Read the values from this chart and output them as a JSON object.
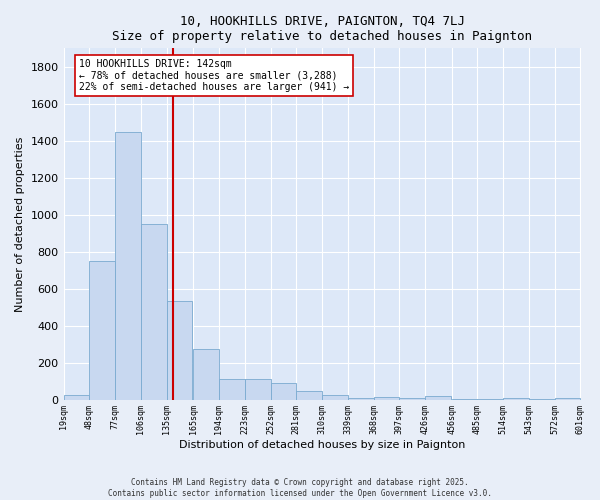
{
  "title_line1": "10, HOOKHILLS DRIVE, PAIGNTON, TQ4 7LJ",
  "title_line2": "Size of property relative to detached houses in Paignton",
  "xlabel": "Distribution of detached houses by size in Paignton",
  "ylabel": "Number of detached properties",
  "bar_color": "#c8d8f0",
  "bar_edge_color": "#7aaad0",
  "bar_left_edges": [
    19,
    48,
    77,
    106,
    135,
    165,
    194,
    223,
    252,
    281,
    310,
    339,
    368,
    397,
    426,
    456,
    485,
    514,
    543,
    572
  ],
  "bar_heights": [
    25,
    750,
    1450,
    950,
    535,
    275,
    110,
    110,
    90,
    45,
    25,
    10,
    15,
    10,
    20,
    5,
    5,
    10,
    5,
    10
  ],
  "bin_width": 29,
  "tick_labels": [
    "19sqm",
    "48sqm",
    "77sqm",
    "106sqm",
    "135sqm",
    "165sqm",
    "194sqm",
    "223sqm",
    "252sqm",
    "281sqm",
    "310sqm",
    "339sqm",
    "368sqm",
    "397sqm",
    "426sqm",
    "456sqm",
    "485sqm",
    "514sqm",
    "543sqm",
    "572sqm",
    "601sqm"
  ],
  "vline_x": 142,
  "vline_color": "#cc0000",
  "annotation_text": "10 HOOKHILLS DRIVE: 142sqm\n← 78% of detached houses are smaller (3,288)\n22% of semi-detached houses are larger (941) →",
  "annotation_box_color": "#ffffff",
  "annotation_box_edge": "#cc0000",
  "ylim": [
    0,
    1900
  ],
  "yticks": [
    0,
    200,
    400,
    600,
    800,
    1000,
    1200,
    1400,
    1600,
    1800
  ],
  "bg_color": "#dde8f8",
  "grid_color": "#ffffff",
  "fig_bg_color": "#e8eef8",
  "footer_line1": "Contains HM Land Registry data © Crown copyright and database right 2025.",
  "footer_line2": "Contains public sector information licensed under the Open Government Licence v3.0."
}
